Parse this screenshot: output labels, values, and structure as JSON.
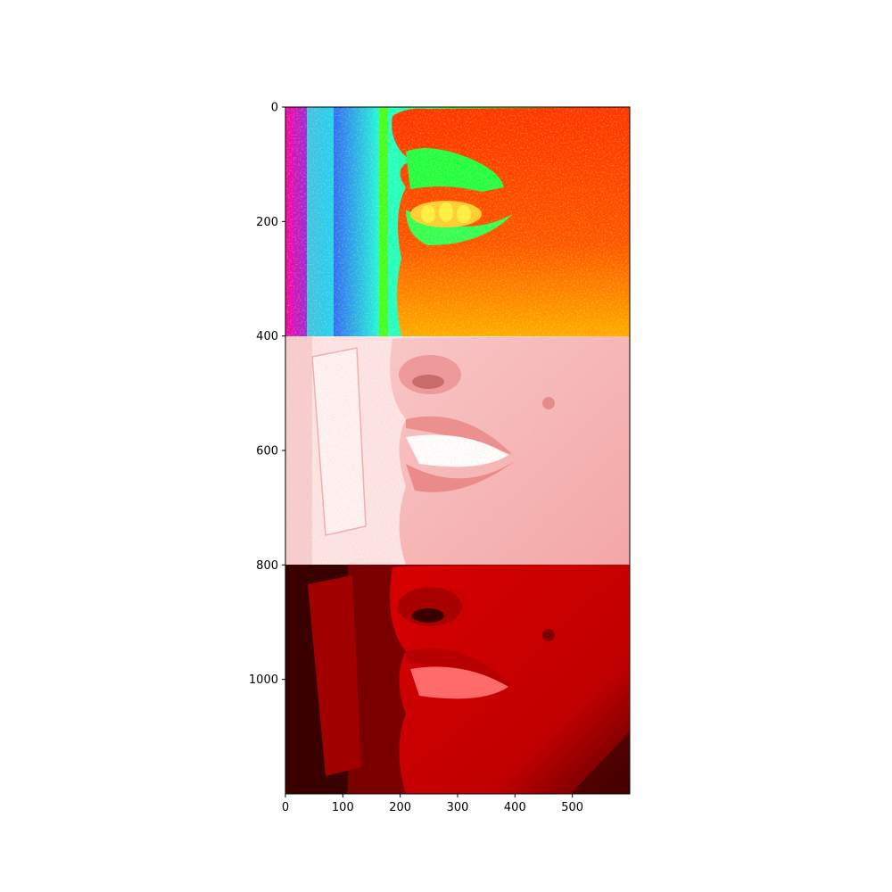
{
  "image": {
    "kind": "matplotlib imshow of three vertically stacked panels of a close-up smiling mouth",
    "panels": [
      {
        "name": "hsv-false-color",
        "palette": [
          "#00ff22",
          "#22ffee",
          "#ff2200",
          "#ff9900",
          "#ffff33",
          "#ff00aa",
          "#2244ff"
        ]
      },
      {
        "name": "light-pink-inverted",
        "palette": [
          "#fde4e4",
          "#f6b1b1",
          "#ec8c8c",
          "#ffffff"
        ]
      },
      {
        "name": "dark-red-channel",
        "palette": [
          "#c00000",
          "#e00000",
          "#7a0000",
          "#2a0000"
        ]
      }
    ]
  },
  "axes": {
    "x_range": [
      0,
      600
    ],
    "y_range": [
      1200,
      0
    ],
    "x_ticks": [
      "0",
      "100",
      "200",
      "300",
      "400",
      "500"
    ],
    "y_ticks": [
      "0",
      "200",
      "400",
      "600",
      "800",
      "1000"
    ]
  }
}
